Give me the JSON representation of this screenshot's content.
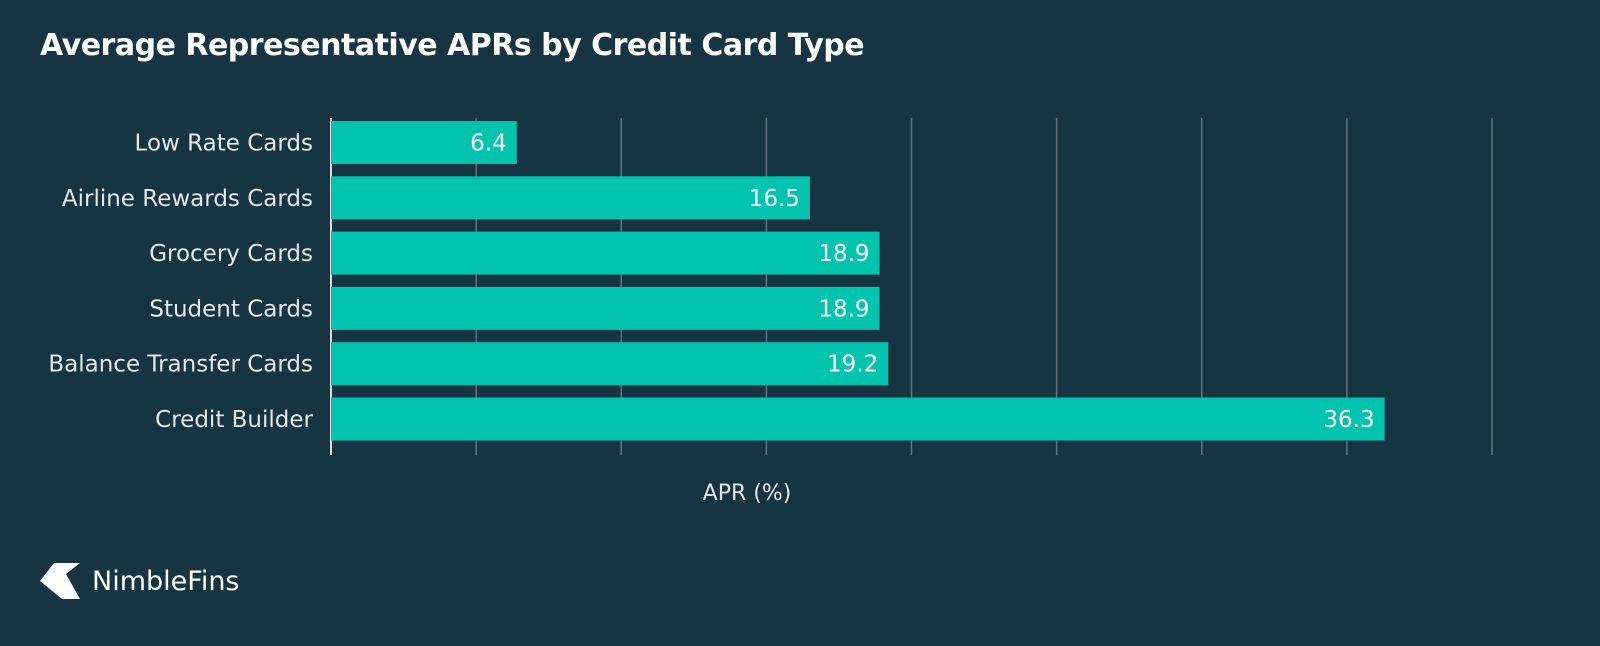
{
  "chart_data": {
    "type": "bar",
    "orientation": "horizontal",
    "title": "Average Representative APRs by Credit Card Type",
    "xlabel": "APR (%)",
    "ylabel": "",
    "categories": [
      "Low Rate Cards",
      "Airline Rewards Cards",
      "Grocery Cards",
      "Student Cards",
      "Balance Transfer Cards",
      "Credit Builder"
    ],
    "values": [
      6.4,
      16.5,
      18.9,
      18.9,
      19.2,
      36.3
    ],
    "data_labels": [
      "6.4",
      "16.5",
      "18.9",
      "18.9",
      "19.2",
      "36.3"
    ],
    "xlim": [
      0,
      40
    ],
    "grid": true,
    "tick_labels_shown": false,
    "colors": {
      "background": "#163442",
      "bar": "#00c4ae",
      "text": "#ffffff",
      "category_text": "#e4e9ec",
      "grid": "#5f7580"
    }
  },
  "brand": {
    "name": "NimbleFins",
    "logo_icon": "nimblefins-logo-icon"
  }
}
